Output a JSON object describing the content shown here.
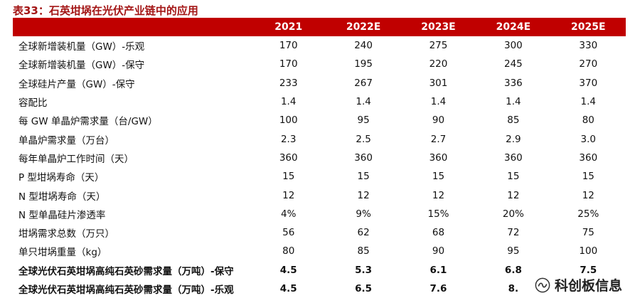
{
  "title": "表33：石英坩埚在光伏产业链中的应用",
  "columns": [
    "",
    "2021",
    "2022E",
    "2023E",
    "2024E",
    "2025E"
  ],
  "rows": [
    {
      "label": "全球新增装机量（GW）-乐观",
      "values": [
        "170",
        "240",
        "275",
        "300",
        "330"
      ],
      "bold": false
    },
    {
      "label": "全球新增装机量（GW）-保守",
      "values": [
        "170",
        "195",
        "220",
        "245",
        "270"
      ],
      "bold": false
    },
    {
      "label": "全球硅片产量（GW）-保守",
      "values": [
        "233",
        "267",
        "301",
        "336",
        "370"
      ],
      "bold": false
    },
    {
      "label": "容配比",
      "values": [
        "1.4",
        "1.4",
        "1.4",
        "1.4",
        "1.4"
      ],
      "bold": false
    },
    {
      "label": "每 GW 单晶炉需求量（台/GW）",
      "values": [
        "100",
        "95",
        "90",
        "85",
        "80"
      ],
      "bold": false
    },
    {
      "label": "单晶炉需求量（万台）",
      "values": [
        "2.3",
        "2.5",
        "2.7",
        "2.9",
        "3.0"
      ],
      "bold": false
    },
    {
      "label": "每年单晶炉工作时间（天）",
      "values": [
        "360",
        "360",
        "360",
        "360",
        "360"
      ],
      "bold": false
    },
    {
      "label": "P 型坩埚寿命（天）",
      "values": [
        "15",
        "15",
        "15",
        "15",
        "15"
      ],
      "bold": false
    },
    {
      "label": "N 型坩埚寿命（天）",
      "values": [
        "12",
        "12",
        "12",
        "12",
        "12"
      ],
      "bold": false
    },
    {
      "label": "N 型单晶硅片渗透率",
      "values": [
        "4%",
        "9%",
        "15%",
        "20%",
        "25%"
      ],
      "bold": false
    },
    {
      "label": "坩埚需求总数（万只）",
      "values": [
        "56",
        "62",
        "68",
        "72",
        "75"
      ],
      "bold": false
    },
    {
      "label": "单只坩埚重量（kg）",
      "values": [
        "80",
        "85",
        "90",
        "95",
        "100"
      ],
      "bold": false
    },
    {
      "label": "全球光伏石英坩埚高纯石英砂需求量（万吨）-保守",
      "values": [
        "4.5",
        "5.3",
        "6.1",
        "6.8",
        "7.5"
      ],
      "bold": true
    },
    {
      "label": "全球光伏石英坩埚高纯石英砂需求量（万吨）-乐观",
      "values": [
        "4.5",
        "6.5",
        "7.6",
        "8.",
        ""
      ],
      "bold": true
    }
  ],
  "watermark": {
    "text": "科创板信息",
    "icon": "wechat-channel-icon"
  },
  "colors": {
    "header_bg": "#c00000",
    "title": "#a31515"
  }
}
